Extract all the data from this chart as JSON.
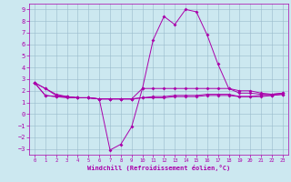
{
  "title": "Windchill (Refroidissement éolien,°C)",
  "bg_color": "#cce8f0",
  "line_color": "#aa00aa",
  "grid_color": "#99bbcc",
  "xlim": [
    -0.5,
    23.5
  ],
  "ylim": [
    -3.5,
    9.5
  ],
  "yticks": [
    -3,
    -2,
    -1,
    0,
    1,
    2,
    3,
    4,
    5,
    6,
    7,
    8,
    9
  ],
  "xticks": [
    0,
    1,
    2,
    3,
    4,
    5,
    6,
    7,
    8,
    9,
    10,
    11,
    12,
    13,
    14,
    15,
    16,
    17,
    18,
    19,
    20,
    21,
    22,
    23
  ],
  "line1_x": [
    0,
    1,
    2,
    3,
    4,
    5,
    6,
    7,
    8,
    9,
    10,
    11,
    12,
    13,
    14,
    15,
    16,
    17,
    18,
    19,
    20,
    21,
    22,
    23
  ],
  "line1_y": [
    2.7,
    2.2,
    1.7,
    1.5,
    1.4,
    1.4,
    1.3,
    -3.1,
    -2.6,
    -1.1,
    2.2,
    6.4,
    8.4,
    7.7,
    9.0,
    8.8,
    6.8,
    4.3,
    2.2,
    2.0,
    2.0,
    1.8,
    1.7,
    1.8
  ],
  "line2_x": [
    0,
    1,
    2,
    3,
    4,
    5,
    6,
    7,
    8,
    9,
    10,
    11,
    12,
    13,
    14,
    15,
    16,
    17,
    18,
    19,
    20,
    21,
    22,
    23
  ],
  "line2_y": [
    2.7,
    2.2,
    1.6,
    1.5,
    1.4,
    1.4,
    1.3,
    1.3,
    1.3,
    1.3,
    2.2,
    2.2,
    2.2,
    2.2,
    2.2,
    2.2,
    2.2,
    2.2,
    2.2,
    1.8,
    1.8,
    1.7,
    1.7,
    1.8
  ],
  "line3_x": [
    0,
    1,
    2,
    3,
    4,
    5,
    6,
    7,
    8,
    9,
    10,
    11,
    12,
    13,
    14,
    15,
    16,
    17,
    18,
    19,
    20,
    21,
    22,
    23
  ],
  "line3_y": [
    2.7,
    1.6,
    1.5,
    1.5,
    1.4,
    1.4,
    1.3,
    1.3,
    1.3,
    1.3,
    1.4,
    1.5,
    1.5,
    1.6,
    1.6,
    1.6,
    1.7,
    1.7,
    1.7,
    1.5,
    1.5,
    1.6,
    1.6,
    1.7
  ],
  "line4_x": [
    0,
    1,
    2,
    3,
    4,
    5,
    6,
    7,
    8,
    9,
    10,
    11,
    12,
    13,
    14,
    15,
    16,
    17,
    18,
    19,
    20,
    21,
    22,
    23
  ],
  "line4_y": [
    2.7,
    1.6,
    1.5,
    1.4,
    1.4,
    1.4,
    1.3,
    1.3,
    1.3,
    1.3,
    1.4,
    1.4,
    1.4,
    1.5,
    1.5,
    1.5,
    1.6,
    1.6,
    1.6,
    1.5,
    1.5,
    1.5,
    1.6,
    1.7
  ]
}
